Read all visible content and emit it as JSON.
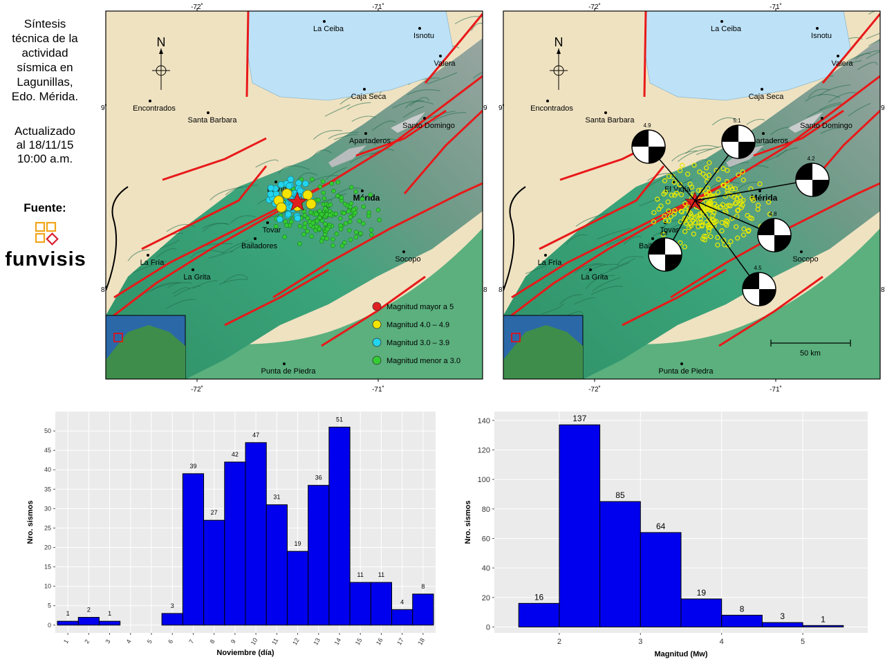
{
  "sidebar": {
    "title_lines": [
      "Síntesis",
      "técnica de la",
      "actividad",
      "sísmica en",
      "Lagunillas,",
      "Edo. Mérida."
    ],
    "update_lines": [
      "Actualizado",
      "al 18/11/15",
      "10:00 a.m."
    ],
    "source_label": "Fuente:",
    "logo_text": "funvisis",
    "colors": {
      "logo_orange": "#f2a51a",
      "logo_red": "#d8202f"
    }
  },
  "maps": {
    "lon_ticks": [
      "-72˚",
      "-71˚"
    ],
    "lat_ticks": [
      "9˚",
      "8˚"
    ],
    "north_label": "N",
    "places": [
      {
        "name": "La Ceiba"
      },
      {
        "name": "Isnotu"
      },
      {
        "name": "Valera"
      },
      {
        "name": "Encontrados"
      },
      {
        "name": "Santa Barbara"
      },
      {
        "name": "Caja Seca"
      },
      {
        "name": "Santo Domingo"
      },
      {
        "name": "Apartaderos"
      },
      {
        "name": "El Vigia"
      },
      {
        "name": "Merida"
      },
      {
        "name": "Bailadores"
      },
      {
        "name": "La Fria"
      },
      {
        "name": "La Grita"
      },
      {
        "name": "Socopo"
      },
      {
        "name": "Punta de Piedra"
      }
    ],
    "map1_places": [
      "La Ceiba",
      "Isnotu",
      "Valera",
      "Encontrados",
      "Santa Barbara",
      "Caja Seca",
      "Santo Domingo",
      "Apartaderos",
      "El Vigía",
      "Mérida",
      "Bailadores",
      "Tovar",
      "La Fría",
      "La Grita",
      "Socopo",
      "Punta de Piedra"
    ],
    "map2_places": [
      "La Ceiba",
      "Isnotu",
      "Valera",
      "Encontrados",
      "Santa Barbara",
      "Caja Seca",
      "Santo Domingo",
      "Apartaderos",
      "El Vigía",
      "Mérida",
      "Bailadores",
      "Tovar",
      "La Fría",
      "La Grita",
      "Socopo",
      "Punta de Piedra"
    ],
    "legend": [
      {
        "label": "Magnitud mayor a 5",
        "color": "#e02020"
      },
      {
        "label": "Magnitud 4.0 – 4.9",
        "color": "#f5e400"
      },
      {
        "label": "Magnitud 3.0 – 3.9",
        "color": "#22d5ee"
      },
      {
        "label": "Magnitud menor a 3.0",
        "color": "#33cc33"
      }
    ],
    "mechanism_magnitudes": [
      "4.9",
      "5.1",
      "4.2",
      "4.8",
      "4.5",
      "4.8"
    ],
    "scale_label": "50 km",
    "colors": {
      "fault": "#e81919",
      "water": "#bde2f7",
      "lowland": "#efe2c1"
    }
  },
  "chart_data": [
    {
      "type": "bar",
      "title": "",
      "xlabel": "Noviembre (día)",
      "ylabel": "Nro. sismos",
      "categories": [
        "1",
        "2",
        "3",
        "4",
        "5",
        "6",
        "7",
        "8",
        "9",
        "10",
        "11",
        "12",
        "13",
        "14",
        "15",
        "16",
        "17",
        "18"
      ],
      "values": [
        1,
        2,
        1,
        0,
        0,
        3,
        39,
        27,
        42,
        47,
        31,
        19,
        36,
        51,
        11,
        11,
        4,
        8
      ],
      "data_labels": [
        "1",
        "2",
        "1",
        "",
        "",
        "3",
        "39",
        "27",
        "42",
        "47",
        "31",
        "19",
        "36",
        "51",
        "11",
        "11",
        "4",
        "8"
      ],
      "yticks": [
        0,
        5,
        10,
        15,
        20,
        25,
        30,
        35,
        40,
        45,
        50
      ],
      "ylim": [
        -2,
        55
      ],
      "grid": true,
      "bar_color": "#0000ee",
      "background": "#ebebeb"
    },
    {
      "type": "histogram",
      "title": "",
      "xlabel": "Magnitud (Mw)",
      "ylabel": "Nro. sismos",
      "bins": [
        [
          1.5,
          2.0
        ],
        [
          2.0,
          2.5
        ],
        [
          2.5,
          3.0
        ],
        [
          3.0,
          3.5
        ],
        [
          3.5,
          4.0
        ],
        [
          4.0,
          4.5
        ],
        [
          4.5,
          5.0
        ],
        [
          5.0,
          5.5
        ]
      ],
      "values": [
        16,
        137,
        85,
        64,
        19,
        8,
        3,
        1
      ],
      "data_labels": [
        "16",
        "137",
        "85",
        "64",
        "19",
        "8",
        "3",
        "1"
      ],
      "xticks": [
        2,
        3,
        4,
        5
      ],
      "yticks": [
        0,
        20,
        40,
        60,
        80,
        100,
        120,
        140
      ],
      "xlim": [
        1.2,
        5.8
      ],
      "ylim": [
        -4,
        146
      ],
      "grid": true,
      "bar_color": "#0000ee",
      "background": "#ebebeb"
    }
  ]
}
